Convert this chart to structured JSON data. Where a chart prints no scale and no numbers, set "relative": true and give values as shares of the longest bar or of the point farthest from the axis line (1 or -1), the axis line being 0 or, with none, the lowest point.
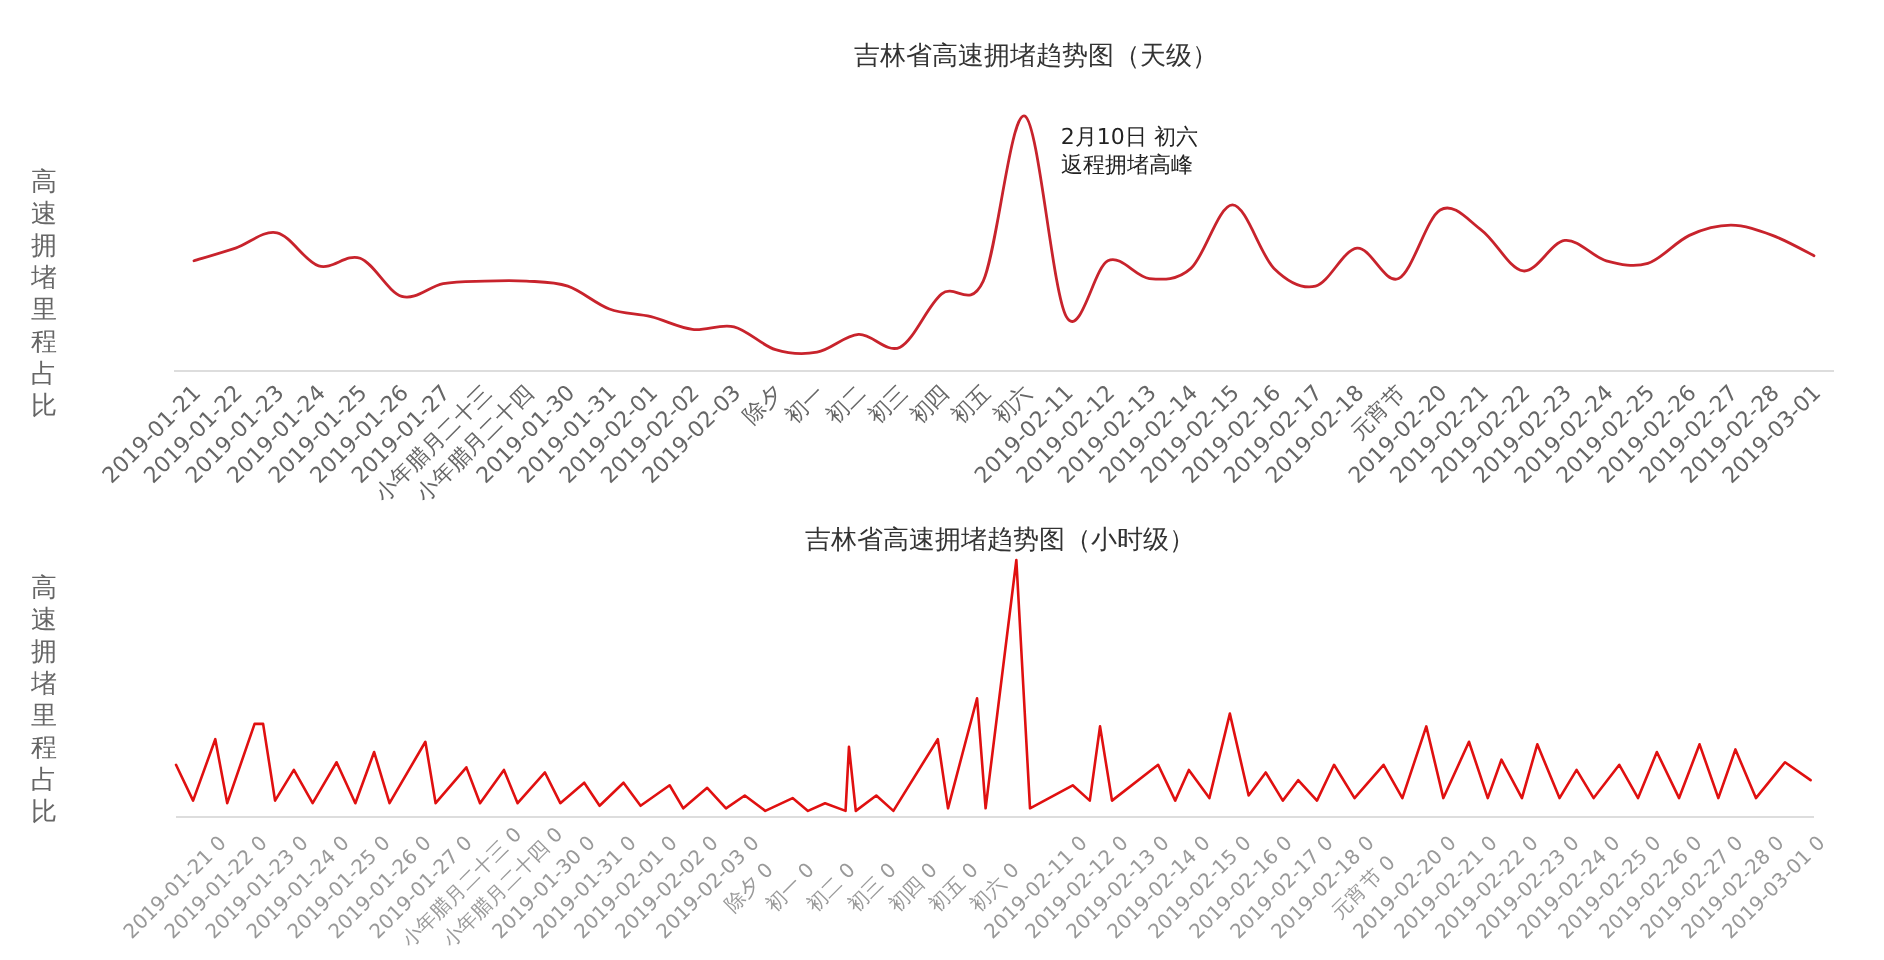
{
  "chart_data": [
    {
      "type": "line",
      "title": "吉林省高速拥堵趋势图（天级）",
      "ylabel": "高速拥堵里程占比",
      "relative": true,
      "categories": [
        "2019-01-21",
        "2019-01-22",
        "2019-01-23",
        "2019-01-24",
        "2019-01-25",
        "2019-01-26",
        "2019-01-27",
        "小年腊月二十三",
        "小年腊月二十四",
        "2019-01-30",
        "2019-01-31",
        "2019-02-01",
        "2019-02-02",
        "2019-02-03",
        "除夕",
        "初一",
        "初二",
        "初三",
        "初四",
        "初五",
        "初六",
        "2019-02-11",
        "2019-02-12",
        "2019-02-13",
        "2019-02-14",
        "2019-02-15",
        "2019-02-16",
        "2019-02-17",
        "2019-02-18",
        "元宵节",
        "2019-02-20",
        "2019-02-21",
        "2019-02-22",
        "2019-02-23",
        "2019-02-24",
        "2019-02-25",
        "2019-02-26",
        "2019-02-27",
        "2019-02-28",
        "2019-03-01"
      ],
      "series": [
        {
          "color": "#c8232c",
          "values": [
            0.43,
            0.48,
            0.54,
            0.41,
            0.44,
            0.29,
            0.34,
            0.35,
            0.35,
            0.33,
            0.24,
            0.21,
            0.16,
            0.17,
            0.08,
            0.07,
            0.14,
            0.09,
            0.3,
            0.35,
            1,
            0.21,
            0.43,
            0.36,
            0.4,
            0.65,
            0.4,
            0.33,
            0.48,
            0.36,
            0.63,
            0.55,
            0.39,
            0.51,
            0.43,
            0.42,
            0.53,
            0.57,
            0.53,
            0.45
          ]
        }
      ],
      "annotations": [
        {
          "text": "2月10日 初六返程拥堵高峰",
          "x": "初六",
          "y": 1
        }
      ]
    },
    {
      "type": "line",
      "title": "吉林省高速拥堵趋势图（小时级）",
      "ylabel": "高速拥堵里程占比",
      "relative": true,
      "xlim": [
        "2019-01-21T00:00",
        "2019-03-01T23:00"
      ],
      "xticks": [
        {
          "value": "2019-01-21T00:00",
          "label": "2019-01-21 0"
        },
        {
          "value": "2019-01-22T00:00",
          "label": "2019-01-22 0"
        },
        {
          "value": "2019-01-23T00:00",
          "label": "2019-01-23 0"
        },
        {
          "value": "2019-01-24T00:00",
          "label": "2019-01-24 0"
        },
        {
          "value": "2019-01-25T00:00",
          "label": "2019-01-25 0"
        },
        {
          "value": "2019-01-26T00:00",
          "label": "2019-01-26 0"
        },
        {
          "value": "2019-01-27T00:00",
          "label": "2019-01-27 0"
        },
        {
          "value": "2019-01-28T00:00",
          "label": "小年腊月二十三 0"
        },
        {
          "value": "2019-01-29T00:00",
          "label": "小年腊月二十四 0"
        },
        {
          "value": "2019-01-30T00:00",
          "label": "2019-01-30 0"
        },
        {
          "value": "2019-01-31T00:00",
          "label": "2019-01-31 0"
        },
        {
          "value": "2019-02-01T00:00",
          "label": "2019-02-01 0"
        },
        {
          "value": "2019-02-02T00:00",
          "label": "2019-02-02 0"
        },
        {
          "value": "2019-02-03T00:00",
          "label": "2019-02-03 0"
        },
        {
          "value": "2019-02-04T00:00",
          "label": "除夕 0"
        },
        {
          "value": "2019-02-05T00:00",
          "label": "初一 0"
        },
        {
          "value": "2019-02-06T00:00",
          "label": "初二 0"
        },
        {
          "value": "2019-02-07T00:00",
          "label": "初三 0"
        },
        {
          "value": "2019-02-08T00:00",
          "label": "初四 0"
        },
        {
          "value": "2019-02-09T00:00",
          "label": "初五 0"
        },
        {
          "value": "2019-02-10T00:00",
          "label": "初六 0"
        },
        {
          "value": "2019-02-11T00:00",
          "label": "2019-02-11 0"
        },
        {
          "value": "2019-02-12T00:00",
          "label": "2019-02-12 0"
        },
        {
          "value": "2019-02-13T00:00",
          "label": "2019-02-13 0"
        },
        {
          "value": "2019-02-14T00:00",
          "label": "2019-02-14 0"
        },
        {
          "value": "2019-02-15T00:00",
          "label": "2019-02-15 0"
        },
        {
          "value": "2019-02-16T00:00",
          "label": "2019-02-16 0"
        },
        {
          "value": "2019-02-17T00:00",
          "label": "2019-02-17 0"
        },
        {
          "value": "2019-02-18T00:00",
          "label": "2019-02-18 0"
        },
        {
          "value": "2019-02-19T00:00",
          "label": "元宵节 0"
        },
        {
          "value": "2019-02-20T00:00",
          "label": "2019-02-20 0"
        },
        {
          "value": "2019-02-21T00:00",
          "label": "2019-02-21 0"
        },
        {
          "value": "2019-02-22T00:00",
          "label": "2019-02-22 0"
        },
        {
          "value": "2019-02-23T00:00",
          "label": "2019-02-23 0"
        },
        {
          "value": "2019-02-24T00:00",
          "label": "2019-02-24 0"
        },
        {
          "value": "2019-02-25T00:00",
          "label": "2019-02-25 0"
        },
        {
          "value": "2019-02-26T00:00",
          "label": "2019-02-26 0"
        },
        {
          "value": "2019-02-27T00:00",
          "label": "2019-02-27 0"
        },
        {
          "value": "2019-02-28T00:00",
          "label": "2019-02-28 0"
        },
        {
          "value": "2019-03-01T00:00",
          "label": "2019-03-01 0"
        }
      ],
      "series": [
        {
          "color": "#e01010",
          "x": [
            "2019-01-21T00:00",
            "2019-01-21T10:00",
            "2019-01-21T23:00",
            "2019-01-22T06:00",
            "2019-01-22T22:00",
            "2019-01-23T03:00",
            "2019-01-23T10:00",
            "2019-01-23T21:00",
            "2019-01-24T08:00",
            "2019-01-24T22:00",
            "2019-01-25T09:00",
            "2019-01-25T20:00",
            "2019-01-26T05:00",
            "2019-01-27T02:00",
            "2019-01-27T08:00",
            "2019-01-28T02:00",
            "2019-01-28T10:00",
            "2019-01-29T00:00",
            "2019-01-29T08:00",
            "2019-01-30T00:00",
            "2019-01-30T09:00",
            "2019-01-30T23:00",
            "2019-01-31T08:00",
            "2019-01-31T22:00",
            "2019-02-01T08:00",
            "2019-02-02T01:00",
            "2019-02-02T09:00",
            "2019-02-02T23:00",
            "2019-02-03T10:00",
            "2019-02-03T21:00",
            "2019-02-04T09:00",
            "2019-02-05T01:00",
            "2019-02-05T10:00",
            "2019-02-05T20:00",
            "2019-02-06T08:00",
            "2019-02-06T10:00",
            "2019-02-06T14:00",
            "2019-02-07T02:00",
            "2019-02-07T12:00",
            "2019-02-08T14:00",
            "2019-02-08T20:00",
            "2019-02-09T13:00",
            "2019-02-09T18:00",
            "2019-02-10T12:00",
            "2019-02-10T20:00",
            "2019-02-11T21:00",
            "2019-02-12T07:00",
            "2019-02-12T13:00",
            "2019-02-12T20:00",
            "2019-02-13T23:00",
            "2019-02-14T09:00",
            "2019-02-14T17:00",
            "2019-02-15T05:00",
            "2019-02-15T17:00",
            "2019-02-16T04:00",
            "2019-02-16T14:00",
            "2019-02-17T00:00",
            "2019-02-17T09:00",
            "2019-02-17T20:00",
            "2019-02-18T06:00",
            "2019-02-18T18:00",
            "2019-02-19T11:00",
            "2019-02-19T22:00",
            "2019-02-20T12:00",
            "2019-02-20T22:00",
            "2019-02-21T13:00",
            "2019-02-22T00:00",
            "2019-02-22T08:00",
            "2019-02-22T20:00",
            "2019-02-23T05:00",
            "2019-02-23T18:00",
            "2019-02-24T04:00",
            "2019-02-24T14:00",
            "2019-02-25T05:00",
            "2019-02-25T16:00",
            "2019-02-26T03:00",
            "2019-02-26T16:00",
            "2019-02-27T04:00",
            "2019-02-27T15:00",
            "2019-02-28T01:00",
            "2019-02-28T13:00",
            "2019-03-01T06:00",
            "2019-03-01T21:00"
          ],
          "values": [
            0.2,
            0.06,
            0.3,
            0.05,
            0.36,
            0.36,
            0.06,
            0.18,
            0.05,
            0.21,
            0.05,
            0.25,
            0.05,
            0.29,
            0.05,
            0.19,
            0.05,
            0.18,
            0.05,
            0.17,
            0.05,
            0.13,
            0.04,
            0.13,
            0.04,
            0.12,
            0.03,
            0.11,
            0.03,
            0.08,
            0.02,
            0.07,
            0.02,
            0.05,
            0.02,
            0.27,
            0.02,
            0.08,
            0.02,
            0.3,
            0.03,
            0.46,
            0.03,
            1,
            0.03,
            0.12,
            0.06,
            0.35,
            0.06,
            0.2,
            0.06,
            0.18,
            0.07,
            0.4,
            0.08,
            0.17,
            0.06,
            0.14,
            0.06,
            0.2,
            0.07,
            0.2,
            0.07,
            0.35,
            0.07,
            0.29,
            0.07,
            0.22,
            0.07,
            0.28,
            0.07,
            0.18,
            0.07,
            0.2,
            0.07,
            0.25,
            0.07,
            0.28,
            0.07,
            0.26,
            0.07,
            0.21,
            0.14
          ]
        }
      ]
    }
  ]
}
